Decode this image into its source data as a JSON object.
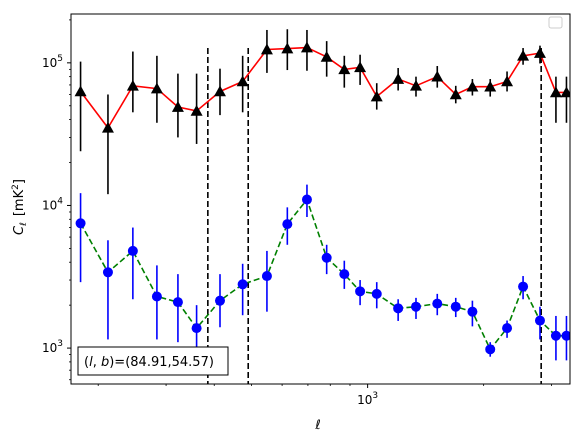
{
  "chart_data": {
    "type": "scatter",
    "title": "",
    "xlabel": "ℓ",
    "ylabel": "C_ℓ  [mK²]",
    "ylabel_parts": {
      "sym": "C",
      "sub": "ℓ",
      "unit": "[mK",
      "sup": "2",
      "close": "]"
    },
    "xscale": "log",
    "yscale": "log",
    "xlim": [
      170,
      3350
    ],
    "ylim": [
      560,
      220000
    ],
    "x_ticks": [
      {
        "value": 1000,
        "base": "10",
        "exp": "3"
      }
    ],
    "y_ticks": [
      {
        "value": 1000,
        "base": "10",
        "exp": "3"
      },
      {
        "value": 10000,
        "base": "10",
        "exp": "4"
      },
      {
        "value": 100000,
        "base": "10",
        "exp": "5"
      }
    ],
    "grid": false,
    "legend": {
      "placement": "top-right",
      "entries": []
    },
    "vlines": [
      385,
      490,
      2820
    ],
    "vline_color": "#000000",
    "annotation": {
      "text": "(l, b)=(84.91,54.57)",
      "parts": {
        "open": "(",
        "l": "l",
        "sep": ", ",
        "b": "b",
        "rest": ")=(84.91,54.57)"
      },
      "placement": "bottom-left"
    },
    "series": [
      {
        "color": "#ff0000",
        "marker_color": "#000000",
        "errorbar_color": "#000000",
        "marker": "triangle",
        "line_style": "solid",
        "x": [
          180,
          212,
          246,
          284,
          322,
          360,
          414,
          474,
          548,
          619,
          696,
          783,
          870,
          956,
          1056,
          1200,
          1335,
          1516,
          1693,
          1870,
          2080,
          2300,
          2531,
          2800,
          3080,
          3280
        ],
        "y": [
          63000,
          35000,
          69000,
          66000,
          49000,
          46000,
          63000,
          74000,
          124000,
          126000,
          128000,
          110000,
          90000,
          93000,
          58000,
          77000,
          69000,
          80000,
          60000,
          68000,
          68000,
          74000,
          112000,
          117000,
          62000,
          62000
        ],
        "yerr_low": [
          24000,
          12000,
          45000,
          38000,
          30000,
          27000,
          43000,
          45000,
          85000,
          89000,
          88000,
          80000,
          67000,
          70000,
          47000,
          64000,
          58000,
          67000,
          52000,
          59000,
          58000,
          63000,
          97000,
          99000,
          38000,
          38000
        ],
        "yerr_high": [
          102000,
          60000,
          120000,
          112000,
          84000,
          84000,
          91000,
          112000,
          170000,
          172000,
          170000,
          142000,
          112000,
          114000,
          72000,
          92000,
          80000,
          95000,
          69000,
          77000,
          77000,
          87000,
          127000,
          132000,
          80000,
          80000
        ]
      },
      {
        "color": "#008000",
        "marker_color": "#0000ff",
        "errorbar_color": "#0000ff",
        "marker": "circle",
        "line_style": "dashed",
        "x": [
          180,
          212,
          246,
          284,
          322,
          360,
          414,
          474,
          548,
          619,
          696,
          783,
          870,
          956,
          1056,
          1200,
          1335,
          1516,
          1693,
          1870,
          2080,
          2300,
          2531,
          2800,
          3080,
          3280
        ],
        "y": [
          7500,
          3400,
          4800,
          2300,
          2100,
          1380,
          2150,
          2800,
          3200,
          7400,
          11000,
          4300,
          3300,
          2500,
          2400,
          1900,
          1950,
          2050,
          1950,
          1800,
          980,
          1380,
          2700,
          1560,
          1220,
          1220
        ],
        "yerr_low": [
          2900,
          1150,
          2200,
          1150,
          1100,
          950,
          1400,
          1700,
          1800,
          5300,
          8300,
          3300,
          2600,
          2000,
          1900,
          1550,
          1600,
          1700,
          1650,
          1420,
          870,
          1180,
          2200,
          1150,
          820,
          820
        ],
        "yerr_high": [
          12200,
          5700,
          7000,
          3800,
          3300,
          2000,
          3300,
          3900,
          4800,
          9700,
          14000,
          5300,
          4100,
          3000,
          2900,
          2200,
          2250,
          2400,
          2250,
          2150,
          1100,
          1560,
          3200,
          1950,
          1680,
          1680
        ]
      }
    ]
  }
}
